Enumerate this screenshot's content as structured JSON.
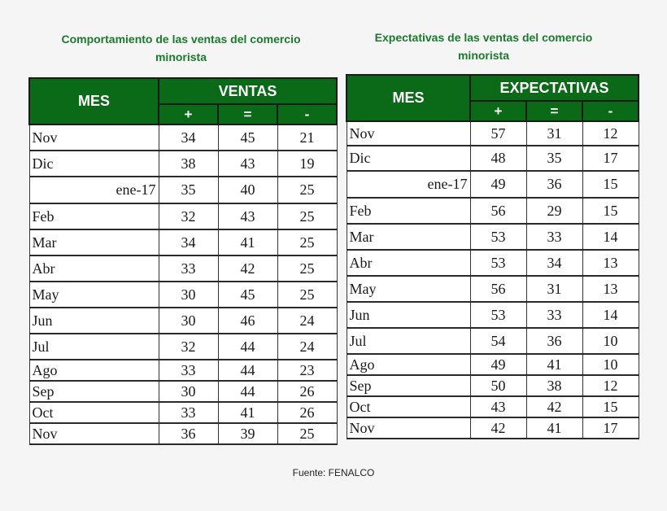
{
  "left": {
    "title_line1": "Comportamiento de las ventas del comercio",
    "title_line2": "minorista",
    "mes_header": "MES",
    "group_header": "VENTAS",
    "signs": [
      "+",
      "=",
      "-"
    ],
    "rows": [
      {
        "month": "Nov",
        "plus": "34",
        "eq": "45",
        "minus": "21"
      },
      {
        "month": "Dic",
        "plus": "38",
        "eq": "43",
        "minus": "19"
      },
      {
        "month": "ene-17",
        "plus": "35",
        "eq": "40",
        "minus": "25"
      },
      {
        "month": "Feb",
        "plus": "32",
        "eq": "43",
        "minus": "25"
      },
      {
        "month": "Mar",
        "plus": "34",
        "eq": "41",
        "minus": "25"
      },
      {
        "month": "Abr",
        "plus": "33",
        "eq": "42",
        "minus": "25"
      },
      {
        "month": "May",
        "plus": "30",
        "eq": "45",
        "minus": "25"
      },
      {
        "month": "Jun",
        "plus": "30",
        "eq": "46",
        "minus": "24"
      },
      {
        "month": "Jul",
        "plus": "32",
        "eq": "44",
        "minus": "24"
      },
      {
        "month": "Ago",
        "plus": "33",
        "eq": "44",
        "minus": "23"
      },
      {
        "month": "Sep",
        "plus": "30",
        "eq": "44",
        "minus": "26"
      },
      {
        "month": "Oct",
        "plus": "33",
        "eq": "41",
        "minus": "26"
      },
      {
        "month": "Nov",
        "plus": "36",
        "eq": "39",
        "minus": "25"
      }
    ]
  },
  "right": {
    "title_line1": "Expectativas  de las ventas  del comercio",
    "title_line2": "minorista",
    "mes_header": "MES",
    "group_header": "EXPECTATIVAS",
    "signs": [
      "+",
      "=",
      "-"
    ],
    "rows": [
      {
        "month": "Nov",
        "plus": "57",
        "eq": "31",
        "minus": "12"
      },
      {
        "month": "Dic",
        "plus": "48",
        "eq": "35",
        "minus": "17"
      },
      {
        "month": "ene-17",
        "plus": "49",
        "eq": "36",
        "minus": "15"
      },
      {
        "month": "Feb",
        "plus": "56",
        "eq": "29",
        "minus": "15"
      },
      {
        "month": "Mar",
        "plus": "53",
        "eq": "33",
        "minus": "14"
      },
      {
        "month": "Abr",
        "plus": "53",
        "eq": "34",
        "minus": "13"
      },
      {
        "month": "May",
        "plus": "56",
        "eq": "31",
        "minus": "13"
      },
      {
        "month": "Jun",
        "plus": "53",
        "eq": "33",
        "minus": "14"
      },
      {
        "month": "Jul",
        "plus": "54",
        "eq": "36",
        "minus": "10"
      },
      {
        "month": "Ago",
        "plus": "49",
        "eq": "41",
        "minus": "10"
      },
      {
        "month": "Sep",
        "plus": "50",
        "eq": "38",
        "minus": "12"
      },
      {
        "month": "Oct",
        "plus": "43",
        "eq": "42",
        "minus": "15"
      },
      {
        "month": "Nov",
        "plus": "42",
        "eq": "41",
        "minus": "17"
      }
    ]
  },
  "footer": "Fuente: FENALCO",
  "colors": {
    "title_green": "#1b7a2e",
    "header_green": "#0b6a17"
  }
}
